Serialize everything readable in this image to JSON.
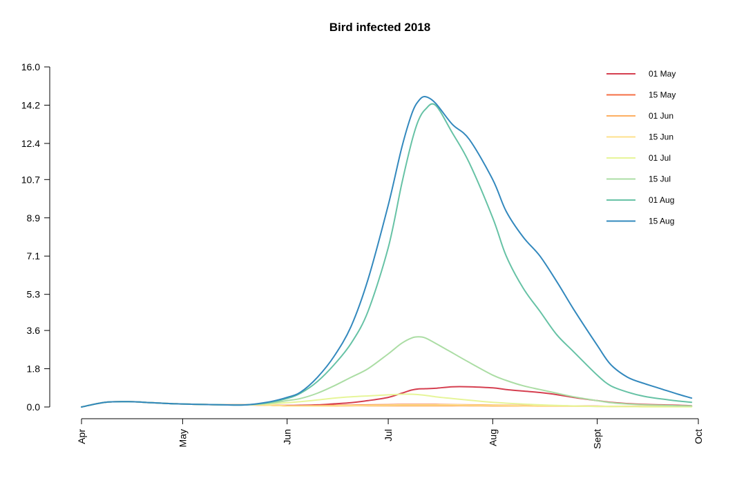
{
  "chart_data": {
    "type": "line",
    "title": "Bird infected 2018",
    "xlabel": "",
    "ylabel": "",
    "x_ticks": [
      {
        "date": "2018-04-01",
        "label": "Apr"
      },
      {
        "date": "2018-05-01",
        "label": "May"
      },
      {
        "date": "2018-06-01",
        "label": "Jun"
      },
      {
        "date": "2018-07-01",
        "label": "Jul"
      },
      {
        "date": "2018-08-01",
        "label": "Aug"
      },
      {
        "date": "2018-09-01",
        "label": "Sept"
      },
      {
        "date": "2018-10-01",
        "label": "Oct"
      }
    ],
    "xlim": [
      "2018-04-01",
      "2018-10-01"
    ],
    "y_ticks": [
      "0.0",
      "1.8",
      "3.6",
      "5.3",
      "7.1",
      "8.9",
      "10.7",
      "12.4",
      "14.2",
      "16.0"
    ],
    "ylim": [
      0,
      16
    ],
    "grid": false,
    "legend": "top-right",
    "x": [
      "2018-04-01",
      "2018-04-08",
      "2018-04-15",
      "2018-04-22",
      "2018-04-29",
      "2018-05-06",
      "2018-05-13",
      "2018-05-20",
      "2018-05-27",
      "2018-06-01",
      "2018-06-05",
      "2018-06-10",
      "2018-06-15",
      "2018-06-20",
      "2018-06-25",
      "2018-07-01",
      "2018-07-05",
      "2018-07-08",
      "2018-07-10",
      "2018-07-12",
      "2018-07-15",
      "2018-07-20",
      "2018-07-25",
      "2018-08-01",
      "2018-08-05",
      "2018-08-10",
      "2018-08-15",
      "2018-08-20",
      "2018-08-25",
      "2018-09-01",
      "2018-09-05",
      "2018-09-10",
      "2018-09-15",
      "2018-09-20",
      "2018-09-25",
      "2018-09-29"
    ],
    "series": [
      {
        "name": "01 May",
        "color": "#d53e4f",
        "values": [
          0.0,
          0.22,
          0.25,
          0.2,
          0.15,
          0.12,
          0.1,
          0.1,
          0.08,
          0.07,
          0.08,
          0.1,
          0.15,
          0.2,
          0.3,
          0.45,
          0.65,
          0.8,
          0.85,
          0.86,
          0.88,
          0.95,
          0.95,
          0.9,
          0.82,
          0.75,
          0.68,
          0.58,
          0.45,
          0.3,
          0.22,
          0.16,
          0.12,
          0.1,
          0.08,
          0.06
        ]
      },
      {
        "name": "15 May",
        "color": "#f46d43",
        "values": [
          0.0,
          0.22,
          0.25,
          0.2,
          0.15,
          0.12,
          0.1,
          0.1,
          0.08,
          0.06,
          0.06,
          0.07,
          0.08,
          0.09,
          0.1,
          0.11,
          0.12,
          0.12,
          0.12,
          0.12,
          0.12,
          0.11,
          0.1,
          0.09,
          0.08,
          0.07,
          0.06,
          0.06,
          0.05,
          0.04,
          0.03,
          0.03,
          0.02,
          0.02,
          0.02,
          0.02
        ]
      },
      {
        "name": "01 Jun",
        "color": "#fdae61",
        "values": [
          0.0,
          0.22,
          0.25,
          0.2,
          0.15,
          0.12,
          0.1,
          0.1,
          0.08,
          0.05,
          0.05,
          0.05,
          0.05,
          0.06,
          0.06,
          0.06,
          0.06,
          0.06,
          0.06,
          0.06,
          0.06,
          0.06,
          0.06,
          0.05,
          0.05,
          0.05,
          0.04,
          0.04,
          0.04,
          0.03,
          0.03,
          0.03,
          0.02,
          0.02,
          0.02,
          0.02
        ]
      },
      {
        "name": "15 Jun",
        "color": "#fee08b",
        "values": [
          0.0,
          0.22,
          0.25,
          0.2,
          0.15,
          0.12,
          0.1,
          0.1,
          0.08,
          0.05,
          0.05,
          0.05,
          0.06,
          0.07,
          0.08,
          0.09,
          0.1,
          0.1,
          0.1,
          0.1,
          0.1,
          0.1,
          0.09,
          0.08,
          0.07,
          0.06,
          0.05,
          0.05,
          0.04,
          0.03,
          0.03,
          0.02,
          0.02,
          0.02,
          0.02,
          0.02
        ]
      },
      {
        "name": "01 Jul",
        "color": "#e6f598",
        "values": [
          0.0,
          0.22,
          0.25,
          0.2,
          0.15,
          0.12,
          0.1,
          0.1,
          0.15,
          0.2,
          0.25,
          0.33,
          0.42,
          0.48,
          0.52,
          0.57,
          0.6,
          0.6,
          0.58,
          0.55,
          0.48,
          0.4,
          0.32,
          0.22,
          0.18,
          0.14,
          0.1,
          0.07,
          0.05,
          0.03,
          0.02,
          0.02,
          0.01,
          0.01,
          0.01,
          0.01
        ]
      },
      {
        "name": "15 Jul",
        "color": "#abdda4",
        "values": [
          0.0,
          0.22,
          0.25,
          0.2,
          0.15,
          0.12,
          0.1,
          0.1,
          0.18,
          0.3,
          0.4,
          0.65,
          1.0,
          1.4,
          1.8,
          2.5,
          3.0,
          3.25,
          3.3,
          3.25,
          3.0,
          2.55,
          2.1,
          1.5,
          1.25,
          1.0,
          0.82,
          0.65,
          0.48,
          0.3,
          0.2,
          0.14,
          0.1,
          0.08,
          0.06,
          0.05
        ]
      },
      {
        "name": "01 Aug",
        "color": "#66c2a5",
        "values": [
          0.0,
          0.22,
          0.25,
          0.2,
          0.15,
          0.12,
          0.1,
          0.1,
          0.22,
          0.4,
          0.65,
          1.2,
          2.0,
          3.0,
          4.5,
          7.5,
          10.5,
          12.5,
          13.5,
          14.0,
          14.2,
          12.9,
          11.5,
          8.9,
          7.1,
          5.6,
          4.5,
          3.4,
          2.6,
          1.5,
          1.0,
          0.7,
          0.5,
          0.38,
          0.28,
          0.22
        ]
      },
      {
        "name": "15 Aug",
        "color": "#3288bd",
        "values": [
          0.0,
          0.22,
          0.25,
          0.2,
          0.15,
          0.12,
          0.1,
          0.1,
          0.25,
          0.45,
          0.7,
          1.4,
          2.4,
          3.8,
          6.0,
          9.5,
          12.2,
          13.8,
          14.4,
          14.6,
          14.3,
          13.3,
          12.6,
          10.7,
          9.2,
          8.0,
          7.1,
          5.9,
          4.6,
          2.9,
          2.0,
          1.4,
          1.1,
          0.85,
          0.6,
          0.42
        ]
      }
    ]
  }
}
